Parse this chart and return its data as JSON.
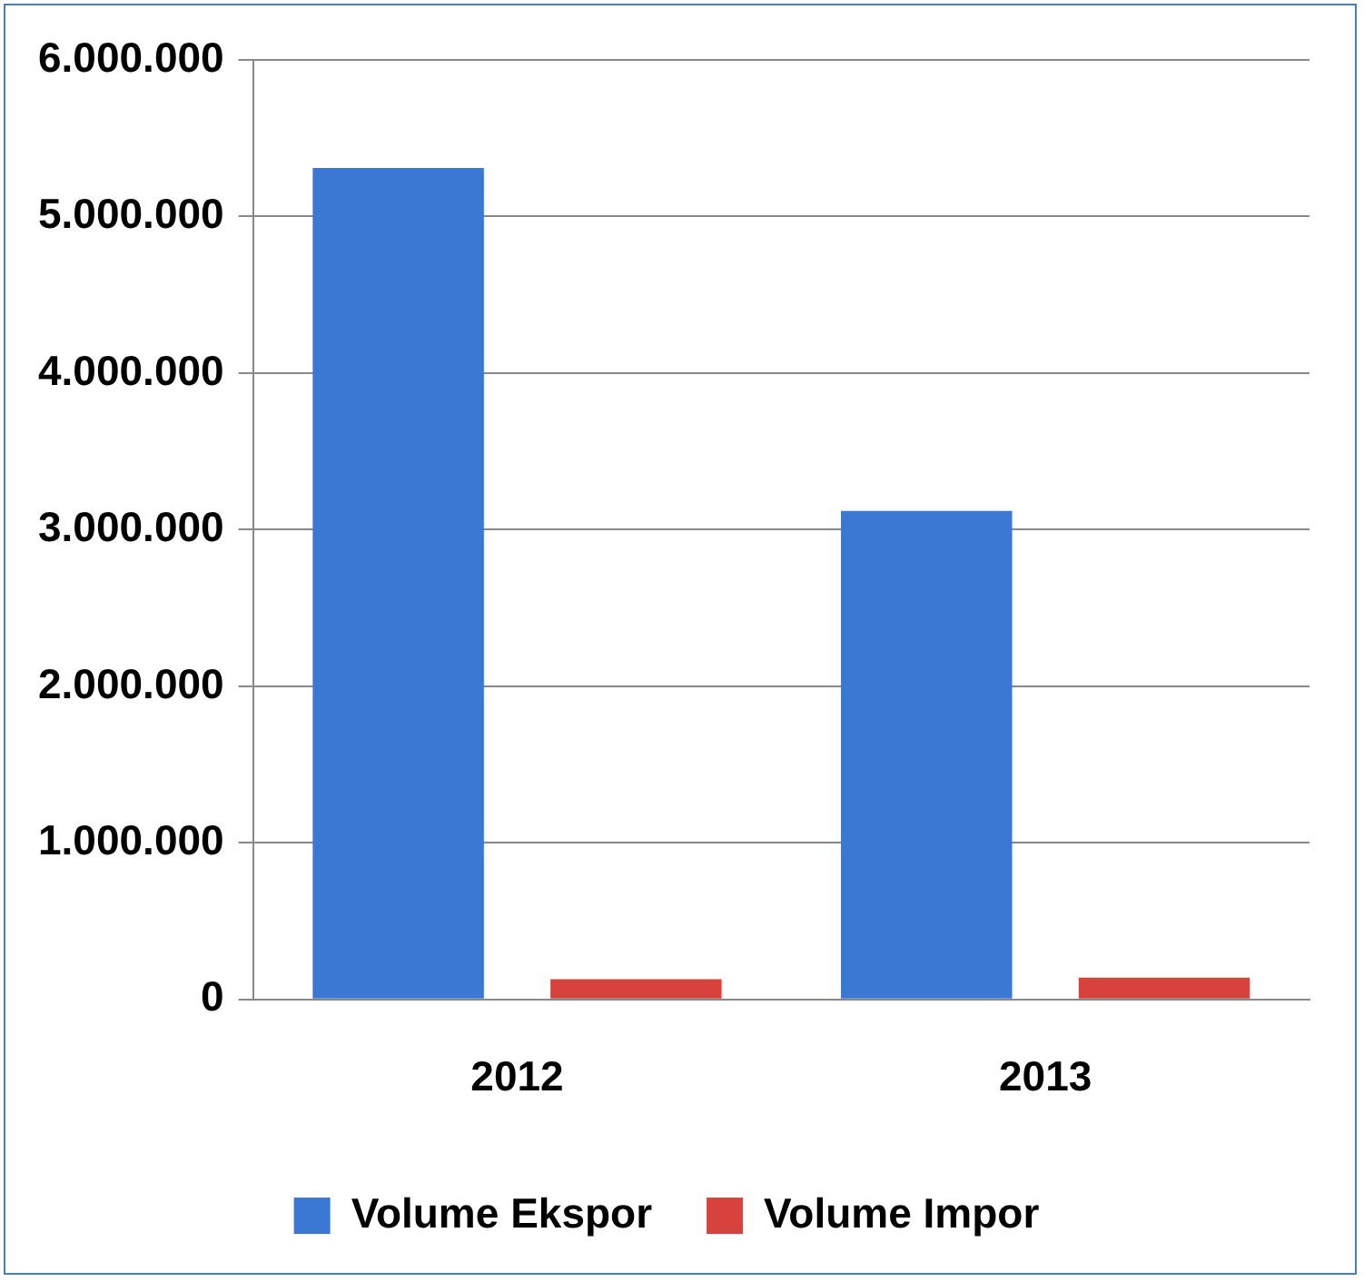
{
  "chart_data": {
    "type": "bar",
    "categories": [
      "2012",
      "2013"
    ],
    "series": [
      {
        "name": "Volume Ekspor",
        "color": "#3b78d4",
        "values": [
          5310000,
          3120000
        ]
      },
      {
        "name": "Volume Impor",
        "color": "#d8423c",
        "values": [
          130000,
          140000
        ]
      }
    ],
    "ylim": [
      0,
      6000000
    ],
    "yticks": [
      {
        "value": 0,
        "label": "0"
      },
      {
        "value": 1000000,
        "label": "1.000.000"
      },
      {
        "value": 2000000,
        "label": "2.000.000"
      },
      {
        "value": 3000000,
        "label": "3.000.000"
      },
      {
        "value": 4000000,
        "label": "4.000.000"
      },
      {
        "value": 5000000,
        "label": "5.000.000"
      },
      {
        "value": 6000000,
        "label": "6.000.000"
      }
    ],
    "grid": "y",
    "legend": "bottom"
  }
}
